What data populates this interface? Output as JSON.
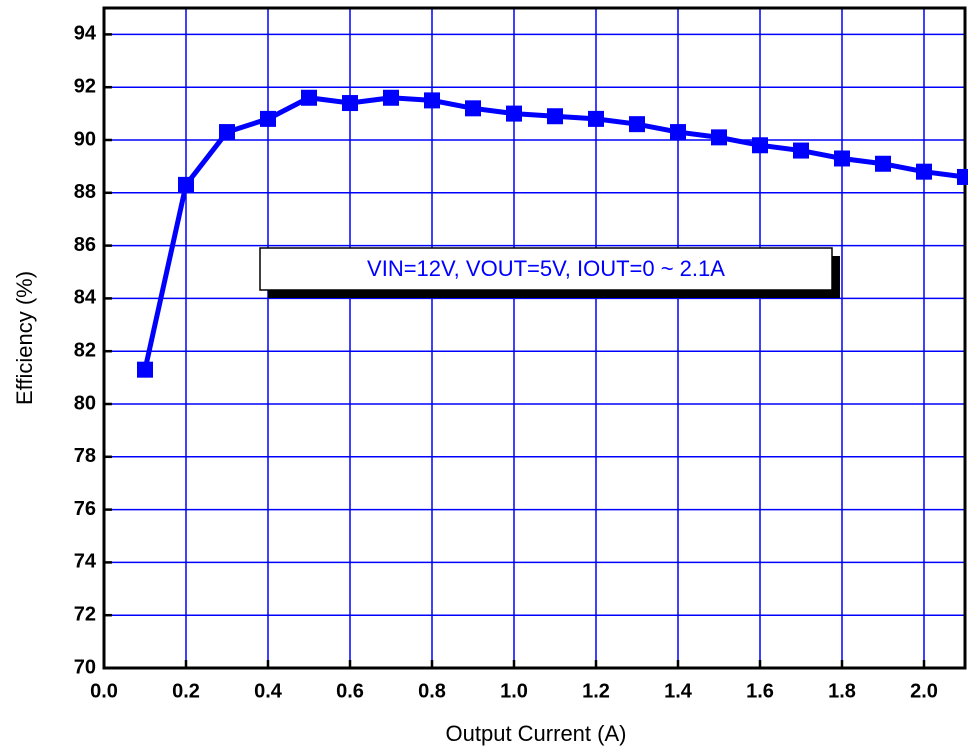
{
  "chart_data": {
    "type": "line",
    "x_label": "Output Current (A)",
    "y_label": "Efficiency (%)",
    "annotation": "VIN=12V, VOUT=5V, IOUT=0 ~ 2.1A",
    "x": [
      0.1,
      0.2,
      0.3,
      0.4,
      0.5,
      0.6,
      0.7,
      0.8,
      0.9,
      1.0,
      1.1,
      1.2,
      1.3,
      1.4,
      1.5,
      1.6,
      1.7,
      1.8,
      1.9,
      2.0,
      2.1
    ],
    "series": [
      {
        "color": "#0000ff",
        "values": [
          81.3,
          88.3,
          90.3,
          90.8,
          91.6,
          91.4,
          91.6,
          91.5,
          91.2,
          91.0,
          90.9,
          90.8,
          90.6,
          90.3,
          90.1,
          89.8,
          89.6,
          89.3,
          89.1,
          88.8,
          88.6
        ]
      }
    ],
    "xlim": [
      0,
      2.1
    ],
    "ylim": [
      70,
      95
    ],
    "xticks": [
      {
        "value": 0,
        "label": "0.0"
      },
      0.2,
      0.4,
      0.6,
      0.8,
      {
        "value": 1,
        "label": "1.0"
      },
      1.2,
      1.4,
      1.6,
      1.8,
      {
        "value": 2,
        "label": "2.0"
      }
    ],
    "yticks": [
      70,
      72,
      74,
      76,
      78,
      80,
      82,
      84,
      86,
      88,
      90,
      92,
      94
    ],
    "grid": true,
    "grid_color": "#0000ff"
  }
}
